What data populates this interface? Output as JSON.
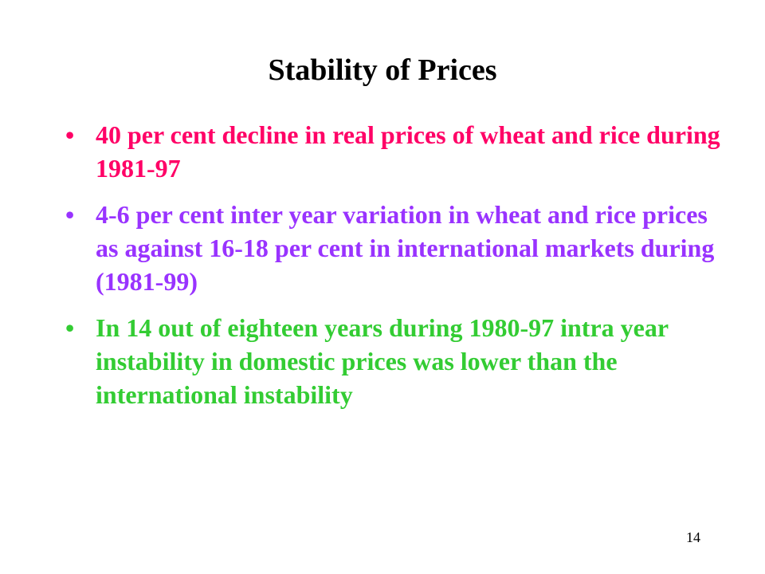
{
  "slide": {
    "title": "Stability of Prices",
    "bullet_symbol": "•",
    "bullets": [
      {
        "text": "40 per cent decline in real prices of wheat and rice during 1981-97",
        "color": "#ff0066"
      },
      {
        "text": "4-6 per cent inter year variation in wheat and rice prices as against 16-18 per cent in international markets during (1981-99)",
        "color": "#9933ff"
      },
      {
        "text": "In 14 out of eighteen years during 1980-97 intra year instability in domestic prices was lower than the international instability",
        "color": "#33cc33"
      }
    ],
    "page_number": "14"
  }
}
